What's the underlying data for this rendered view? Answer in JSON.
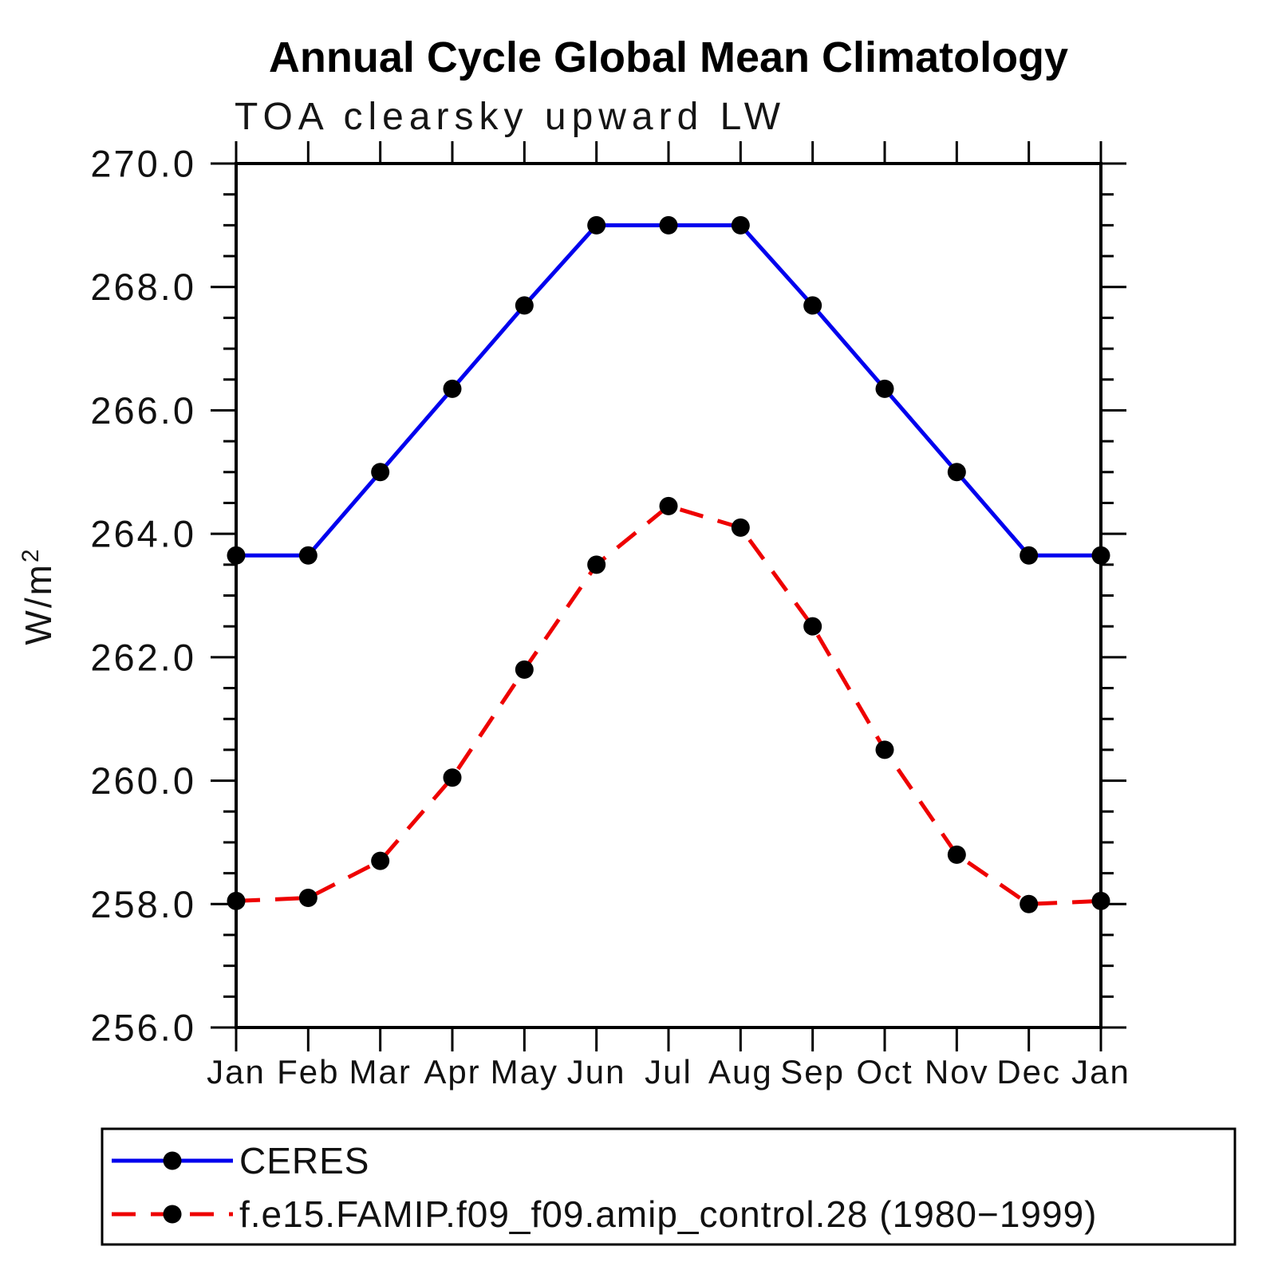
{
  "chart_data": {
    "type": "line",
    "title": "Annual Cycle Global Mean Climatology",
    "subtitle": "TOA clearsky upward LW",
    "ylabel_base": "W/m",
    "ylabel_exp": "2",
    "categories": [
      "Jan",
      "Feb",
      "Mar",
      "Apr",
      "May",
      "Jun",
      "Jul",
      "Aug",
      "Sep",
      "Oct",
      "Nov",
      "Dec",
      "Jan"
    ],
    "series": [
      {
        "name": "CERES",
        "color": "#0000ee",
        "line_style": "solid",
        "marker": "filled-circle",
        "marker_color": "#000000",
        "values": [
          263.65,
          263.65,
          265.0,
          266.35,
          267.7,
          269.0,
          269.0,
          269.0,
          267.7,
          266.35,
          265.0,
          263.65,
          263.65
        ]
      },
      {
        "name": "f.e15.FAMIP.f09_f09.amip_control.28 (1980−1999)",
        "color": "#ee0000",
        "line_style": "dashed",
        "marker": "filled-circle",
        "marker_color": "#000000",
        "values": [
          258.05,
          258.1,
          258.7,
          260.05,
          261.8,
          263.5,
          264.45,
          264.1,
          262.5,
          260.5,
          258.8,
          258.0,
          258.05
        ]
      }
    ],
    "ylim": [
      256.0,
      270.0
    ],
    "ytick_major_step": 2.0,
    "ytick_minor_step": 0.5,
    "yticklabels": [
      "256.0",
      "258.0",
      "260.0",
      "262.0",
      "264.0",
      "266.0",
      "268.0",
      "270.0"
    ],
    "grid": "off",
    "legend_position": "bottom-left-box",
    "axis_color": "#000000"
  }
}
